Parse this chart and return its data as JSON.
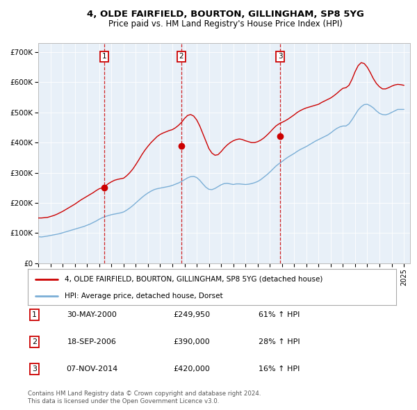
{
  "title1": "4, OLDE FAIRFIELD, BOURTON, GILLINGHAM, SP8 5YG",
  "title2": "Price paid vs. HM Land Registry's House Price Index (HPI)",
  "legend1": "4, OLDE FAIRFIELD, BOURTON, GILLINGHAM, SP8 5YG (detached house)",
  "legend2": "HPI: Average price, detached house, Dorset",
  "footnote1": "Contains HM Land Registry data © Crown copyright and database right 2024.",
  "footnote2": "This data is licensed under the Open Government Licence v3.0.",
  "sale_labels": [
    {
      "num": "1",
      "date": "30-MAY-2000",
      "price": "£249,950",
      "pct": "61% ↑ HPI"
    },
    {
      "num": "2",
      "date": "18-SEP-2006",
      "price": "£390,000",
      "pct": "28% ↑ HPI"
    },
    {
      "num": "3",
      "date": "07-NOV-2014",
      "price": "£420,000",
      "pct": "16% ↑ HPI"
    }
  ],
  "sale_years": [
    2000.42,
    2006.72,
    2014.85
  ],
  "sale_prices": [
    249950,
    390000,
    420000
  ],
  "vline_x": [
    2000.42,
    2006.72,
    2014.85
  ],
  "vline_box_labels": [
    "1",
    "2",
    "3"
  ],
  "ylim": [
    0,
    730000
  ],
  "xlim_start": 1995.0,
  "xlim_end": 2025.5,
  "yticks": [
    0,
    100000,
    200000,
    300000,
    400000,
    500000,
    600000,
    700000
  ],
  "ytick_labels": [
    "£0",
    "£100K",
    "£200K",
    "£300K",
    "£400K",
    "£500K",
    "£600K",
    "£700K"
  ],
  "xticks": [
    1995,
    1996,
    1997,
    1998,
    1999,
    2000,
    2001,
    2002,
    2003,
    2004,
    2005,
    2006,
    2007,
    2008,
    2009,
    2010,
    2011,
    2012,
    2013,
    2014,
    2015,
    2016,
    2017,
    2018,
    2019,
    2020,
    2021,
    2022,
    2023,
    2024,
    2025
  ],
  "bg_color": "#e8f0f8",
  "red_color": "#cc0000",
  "blue_color": "#7aaed6",
  "hpi_data": {
    "years": [
      1995.0,
      1995.25,
      1995.5,
      1995.75,
      1996.0,
      1996.25,
      1996.5,
      1996.75,
      1997.0,
      1997.25,
      1997.5,
      1997.75,
      1998.0,
      1998.25,
      1998.5,
      1998.75,
      1999.0,
      1999.25,
      1999.5,
      1999.75,
      2000.0,
      2000.25,
      2000.5,
      2000.75,
      2001.0,
      2001.25,
      2001.5,
      2001.75,
      2002.0,
      2002.25,
      2002.5,
      2002.75,
      2003.0,
      2003.25,
      2003.5,
      2003.75,
      2004.0,
      2004.25,
      2004.5,
      2004.75,
      2005.0,
      2005.25,
      2005.5,
      2005.75,
      2006.0,
      2006.25,
      2006.5,
      2006.75,
      2007.0,
      2007.25,
      2007.5,
      2007.75,
      2008.0,
      2008.25,
      2008.5,
      2008.75,
      2009.0,
      2009.25,
      2009.5,
      2009.75,
      2010.0,
      2010.25,
      2010.5,
      2010.75,
      2011.0,
      2011.25,
      2011.5,
      2011.75,
      2012.0,
      2012.25,
      2012.5,
      2012.75,
      2013.0,
      2013.25,
      2013.5,
      2013.75,
      2014.0,
      2014.25,
      2014.5,
      2014.75,
      2015.0,
      2015.25,
      2015.5,
      2015.75,
      2016.0,
      2016.25,
      2016.5,
      2016.75,
      2017.0,
      2017.25,
      2017.5,
      2017.75,
      2018.0,
      2018.25,
      2018.5,
      2018.75,
      2019.0,
      2019.25,
      2019.5,
      2019.75,
      2020.0,
      2020.25,
      2020.5,
      2020.75,
      2021.0,
      2021.25,
      2021.5,
      2021.75,
      2022.0,
      2022.25,
      2022.5,
      2022.75,
      2023.0,
      2023.25,
      2023.5,
      2023.75,
      2024.0,
      2024.25,
      2024.5,
      2024.75,
      2025.0
    ],
    "values": [
      88000,
      87000,
      88500,
      90000,
      92000,
      94000,
      96000,
      98000,
      101000,
      104000,
      107000,
      110000,
      113000,
      116000,
      119000,
      122000,
      126000,
      130000,
      135000,
      140000,
      146000,
      151000,
      155000,
      158000,
      161000,
      163000,
      165000,
      167000,
      170000,
      176000,
      183000,
      191000,
      200000,
      209000,
      218000,
      226000,
      233000,
      239000,
      244000,
      247000,
      249000,
      251000,
      253000,
      255000,
      258000,
      262000,
      266000,
      271000,
      277000,
      283000,
      287000,
      288000,
      284000,
      275000,
      263000,
      252000,
      245000,
      244000,
      248000,
      254000,
      260000,
      264000,
      265000,
      263000,
      261000,
      263000,
      263000,
      262000,
      261000,
      262000,
      264000,
      267000,
      271000,
      277000,
      285000,
      293000,
      302000,
      312000,
      322000,
      330000,
      337000,
      345000,
      352000,
      358000,
      364000,
      371000,
      377000,
      382000,
      387000,
      393000,
      399000,
      405000,
      410000,
      415000,
      420000,
      425000,
      432000,
      440000,
      447000,
      452000,
      455000,
      455000,
      462000,
      476000,
      492000,
      508000,
      519000,
      526000,
      527000,
      522000,
      515000,
      505000,
      497000,
      493000,
      492000,
      495000,
      500000,
      505000,
      510000,
      510000,
      510000
    ]
  },
  "price_data": {
    "years": [
      1995.0,
      1995.25,
      1995.5,
      1995.75,
      1996.0,
      1996.25,
      1996.5,
      1996.75,
      1997.0,
      1997.25,
      1997.5,
      1997.75,
      1998.0,
      1998.25,
      1998.5,
      1998.75,
      1999.0,
      1999.25,
      1999.5,
      1999.75,
      2000.0,
      2000.25,
      2000.5,
      2000.75,
      2001.0,
      2001.25,
      2001.5,
      2001.75,
      2002.0,
      2002.25,
      2002.5,
      2002.75,
      2003.0,
      2003.25,
      2003.5,
      2003.75,
      2004.0,
      2004.25,
      2004.5,
      2004.75,
      2005.0,
      2005.25,
      2005.5,
      2005.75,
      2006.0,
      2006.25,
      2006.5,
      2006.75,
      2007.0,
      2007.25,
      2007.5,
      2007.75,
      2008.0,
      2008.25,
      2008.5,
      2008.75,
      2009.0,
      2009.25,
      2009.5,
      2009.75,
      2010.0,
      2010.25,
      2010.5,
      2010.75,
      2011.0,
      2011.25,
      2011.5,
      2011.75,
      2012.0,
      2012.25,
      2012.5,
      2012.75,
      2013.0,
      2013.25,
      2013.5,
      2013.75,
      2014.0,
      2014.25,
      2014.5,
      2014.75,
      2015.0,
      2015.25,
      2015.5,
      2015.75,
      2016.0,
      2016.25,
      2016.5,
      2016.75,
      2017.0,
      2017.25,
      2017.5,
      2017.75,
      2018.0,
      2018.25,
      2018.5,
      2018.75,
      2019.0,
      2019.25,
      2019.5,
      2019.75,
      2020.0,
      2020.25,
      2020.5,
      2020.75,
      2021.0,
      2021.25,
      2021.5,
      2021.75,
      2022.0,
      2022.25,
      2022.5,
      2022.75,
      2023.0,
      2023.25,
      2023.5,
      2023.75,
      2024.0,
      2024.25,
      2024.5,
      2024.75,
      2025.0
    ],
    "values": [
      150000,
      150000,
      151000,
      152000,
      155000,
      158000,
      162000,
      167000,
      172000,
      178000,
      184000,
      190000,
      196000,
      203000,
      210000,
      216000,
      222000,
      228000,
      234000,
      241000,
      247000,
      249950,
      256000,
      264000,
      270000,
      275000,
      278000,
      280000,
      282000,
      290000,
      300000,
      312000,
      327000,
      343000,
      360000,
      375000,
      388000,
      400000,
      410000,
      420000,
      427000,
      432000,
      436000,
      440000,
      443000,
      449000,
      457000,
      467000,
      480000,
      490000,
      493000,
      488000,
      475000,
      455000,
      430000,
      405000,
      380000,
      365000,
      358000,
      360000,
      370000,
      382000,
      392000,
      400000,
      406000,
      410000,
      412000,
      410000,
      406000,
      403000,
      400000,
      400000,
      403000,
      408000,
      415000,
      424000,
      434000,
      445000,
      455000,
      462000,
      467000,
      472000,
      478000,
      485000,
      492000,
      500000,
      506000,
      511000,
      515000,
      518000,
      521000,
      524000,
      527000,
      533000,
      538000,
      543000,
      548000,
      555000,
      563000,
      572000,
      580000,
      582000,
      590000,
      610000,
      635000,
      655000,
      665000,
      662000,
      650000,
      632000,
      612000,
      596000,
      585000,
      578000,
      578000,
      582000,
      587000,
      591000,
      593000,
      592000,
      590000
    ]
  }
}
